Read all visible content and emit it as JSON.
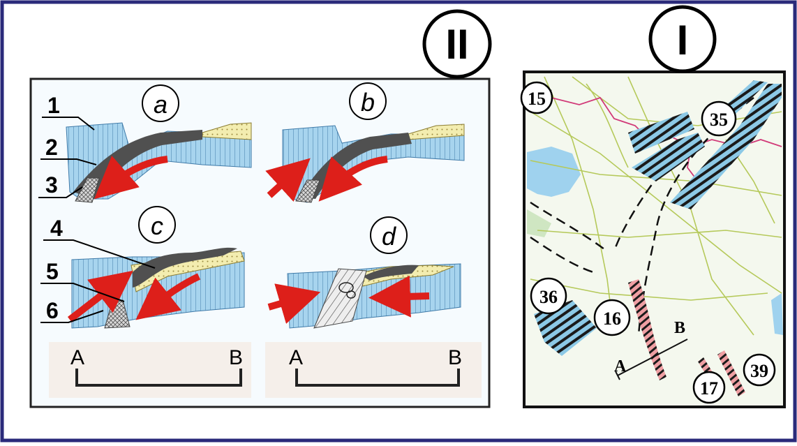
{
  "panels": {
    "left": {
      "roman": "II",
      "subfigures": [
        {
          "letter": "a"
        },
        {
          "letter": "b"
        },
        {
          "letter": "c"
        },
        {
          "letter": "d"
        }
      ],
      "legend_numbers": [
        "1",
        "2",
        "3",
        "4",
        "5",
        "6"
      ],
      "sections": [
        {
          "start": "A",
          "end": "B"
        },
        {
          "start": "A",
          "end": "B"
        }
      ]
    },
    "right": {
      "roman": "I",
      "zones": [
        "15",
        "35",
        "36",
        "16",
        "17",
        "39"
      ],
      "section_start": "A",
      "section_end": "B"
    }
  },
  "colors": {
    "frame_border": "#2a2a7a",
    "blue_layer": "#9fcfea",
    "dark_layer": "#505050",
    "yellow_layer": "#f3edb0",
    "arrow": "#dd1f1a",
    "map_bg": "#f2f7ec",
    "pink_zone": "#e89a9a",
    "blue_zone": "#7fc4e3"
  }
}
